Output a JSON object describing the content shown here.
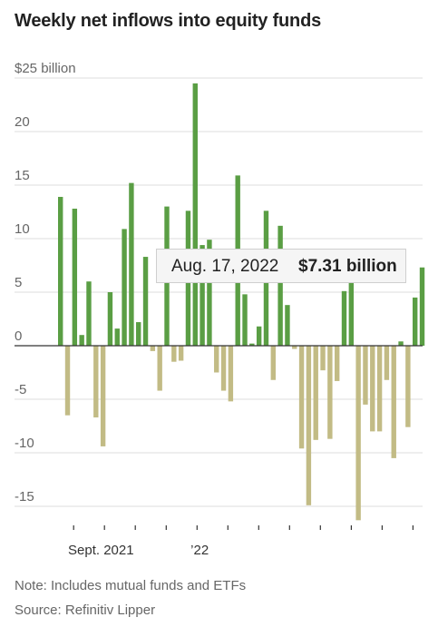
{
  "title": "Weekly net inflows into equity funds",
  "note": "Note: Includes mutual funds and ETFs",
  "source": "Source: Refinitiv Lipper",
  "tooltip": {
    "date": "Aug. 17, 2022",
    "value": "$7.31 billion"
  },
  "colors": {
    "inflow": "#5a9e44",
    "outflow": "#c2bb85"
  },
  "chart_data": {
    "type": "bar",
    "title": "Weekly net inflows into equity funds",
    "xlabel": "",
    "ylabel": "",
    "ylim": [
      -17,
      25
    ],
    "yticks": [
      {
        "value": 25,
        "label": "$25 billion"
      },
      {
        "value": 20,
        "label": "20"
      },
      {
        "value": 15,
        "label": "15"
      },
      {
        "value": 10,
        "label": "10"
      },
      {
        "value": 5,
        "label": "5"
      },
      {
        "value": 0,
        "label": "0"
      },
      {
        "value": -5,
        "label": "-5"
      },
      {
        "value": -10,
        "label": "-10"
      },
      {
        "value": -15,
        "label": "-15"
      }
    ],
    "xtick_labels": [
      {
        "index": 4,
        "label": "Sept. 2021"
      },
      {
        "index": 21,
        "label": "’22"
      }
    ],
    "grid": true,
    "values": [
      13.9,
      -6.5,
      12.8,
      1.0,
      6.0,
      -6.7,
      -9.4,
      5.0,
      1.6,
      10.9,
      15.2,
      2.2,
      8.3,
      -0.5,
      -4.2,
      13.0,
      -1.5,
      -1.4,
      12.6,
      24.5,
      9.4,
      9.9,
      -2.5,
      -4.2,
      -5.2,
      15.9,
      4.8,
      0.2,
      1.8,
      12.6,
      -3.2,
      11.2,
      3.8,
      -0.3,
      -9.6,
      -14.9,
      -8.8,
      -2.3,
      -8.7,
      -3.3,
      5.1,
      7.0,
      -16.3,
      -5.5,
      -8.0,
      -8.0,
      -3.2,
      -10.5,
      0.4,
      -7.6,
      4.5,
      7.31
    ]
  }
}
